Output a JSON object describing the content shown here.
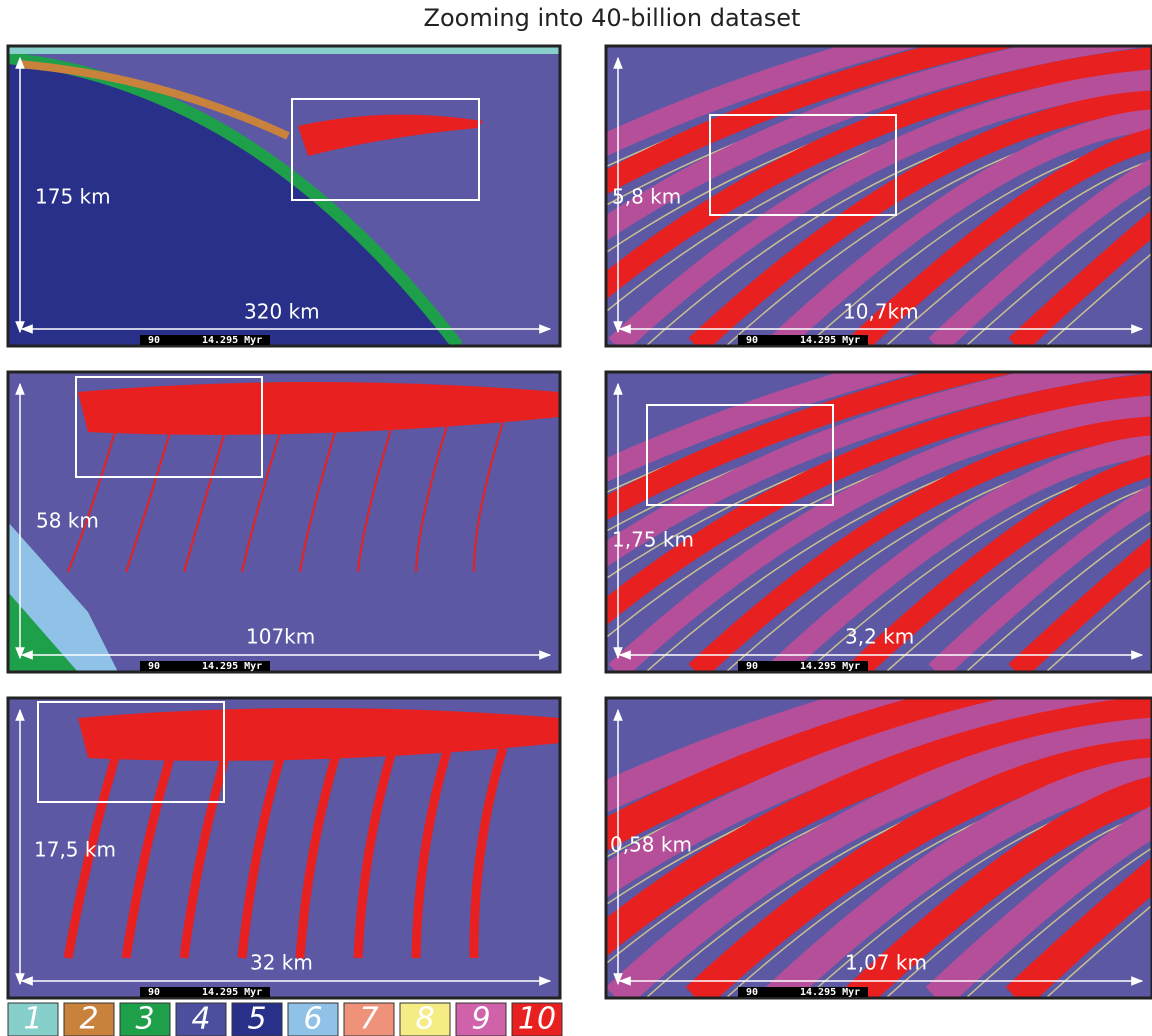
{
  "title": "Zooming into 40-billion dataset",
  "panels": [
    {
      "height_label": "175 km",
      "width_label": "320 km",
      "time_step": "90",
      "time": "14.295 Myr"
    },
    {
      "height_label": "58 km",
      "width_label": "107km",
      "time_step": "90",
      "time": "14.295 Myr"
    },
    {
      "height_label": "17,5 km",
      "width_label": "32 km",
      "time_step": "90",
      "time": "14.295 Myr"
    },
    {
      "height_label": "5,8 km",
      "width_label": "10,7km",
      "time_step": "90",
      "time": "14.295 Myr"
    },
    {
      "height_label": "1,75 km",
      "width_label": "3,2 km",
      "time_step": "90",
      "time": "14.295 Myr"
    },
    {
      "height_label": "0,58 km",
      "width_label": "1,07 km",
      "time_step": "90",
      "time": "14.295 Myr"
    }
  ],
  "legend": [
    {
      "label": "1",
      "color": "#86cfcb"
    },
    {
      "label": "2",
      "color": "#c9823c"
    },
    {
      "label": "3",
      "color": "#1e9f4a"
    },
    {
      "label": "4",
      "color": "#4b4f9e"
    },
    {
      "label": "5",
      "color": "#28308a"
    },
    {
      "label": "6",
      "color": "#8fc2e6"
    },
    {
      "label": "7",
      "color": "#ee9379"
    },
    {
      "label": "8",
      "color": "#f5ec86"
    },
    {
      "label": "9",
      "color": "#cf62a9"
    },
    {
      "label": "10",
      "color": "#e8201f"
    }
  ]
}
